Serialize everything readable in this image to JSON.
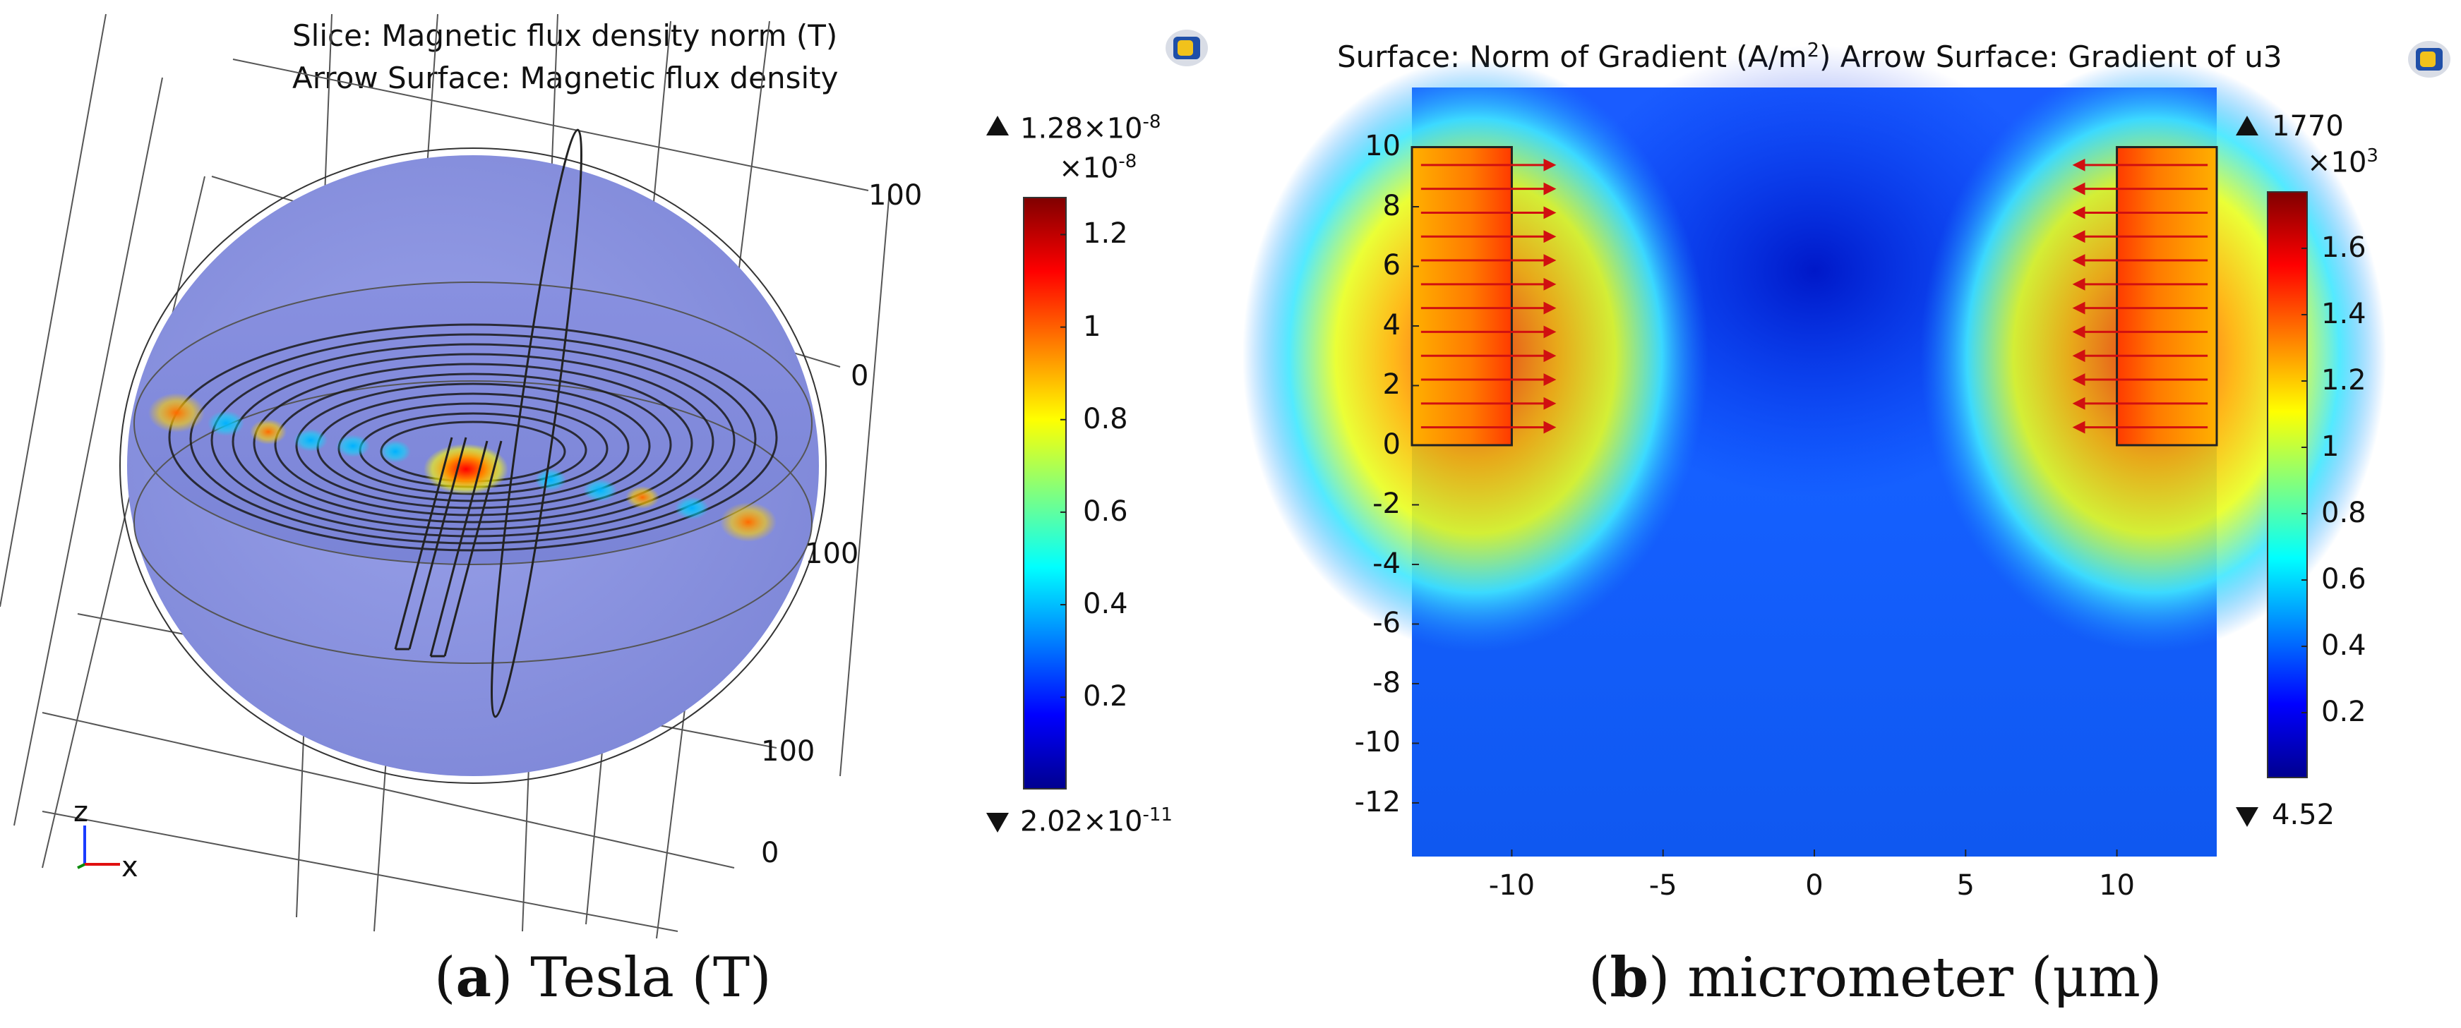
{
  "chart_data": [
    {
      "type": "heatmap",
      "panel_label": "a",
      "caption": "Tesla (T)",
      "title_lines": [
        "Slice: Magnetic flux density norm (T)",
        "Arrow Surface: Magnetic flux density"
      ],
      "axis_tick_labels": [
        "100",
        "0",
        "100",
        "100",
        "0"
      ],
      "axes_triad": {
        "z": "z",
        "x": "x"
      },
      "colorbar": {
        "max_label": "1.28×10",
        "max_exp": "-8",
        "multiplier": "×10",
        "multiplier_exp": "-8",
        "min_label": "2.02×10",
        "min_exp": "-11",
        "ticks": [
          "1.2",
          "1",
          "0.8",
          "0.6",
          "0.4",
          "0.2"
        ],
        "tick_values": [
          1.2,
          1.0,
          0.8,
          0.6,
          0.4,
          0.2
        ],
        "range": [
          0.00202,
          1.28
        ]
      }
    },
    {
      "type": "heatmap",
      "panel_label": "b",
      "caption": "micrometer (μm)",
      "title_left": "Surface: Norm of Gradient (A/m",
      "title_sup": "2",
      "title_right": ")  Arrow Surface: Gradient of u3",
      "x_ticks": [
        "-10",
        "-5",
        "0",
        "5",
        "10"
      ],
      "x_tick_values": [
        -10,
        -5,
        0,
        5,
        10
      ],
      "y_ticks": [
        "10",
        "8",
        "6",
        "4",
        "2",
        "0",
        "-2",
        "-4",
        "-6",
        "-8",
        "-10",
        "-12"
      ],
      "y_tick_values": [
        10,
        8,
        6,
        4,
        2,
        0,
        -2,
        -4,
        -6,
        -8,
        -10,
        -12
      ],
      "xlim": [
        -13.3,
        13.3
      ],
      "ylim": [
        -13.8,
        12
      ],
      "electrodes": [
        {
          "x": [
            -13.3,
            -10
          ],
          "y": [
            0,
            10
          ]
        },
        {
          "x": [
            10,
            13.3
          ],
          "y": [
            0,
            10
          ]
        }
      ],
      "colorbar": {
        "max_label": "1770",
        "multiplier": "×10",
        "multiplier_exp": "3",
        "min_label": "4.52",
        "ticks": [
          "1.6",
          "1.4",
          "1.2",
          "1",
          "0.8",
          "0.6",
          "0.4",
          "0.2"
        ],
        "tick_values": [
          1.6,
          1.4,
          1.2,
          1.0,
          0.8,
          0.6,
          0.4,
          0.2
        ],
        "range": [
          0.00452,
          1.77
        ]
      }
    }
  ],
  "colors": {
    "jet_dark_blue": "#00008f",
    "jet_blue": "#0000ff",
    "jet_cyan": "#00ffff",
    "jet_yellow": "#ffff00",
    "jet_red": "#ff0000",
    "jet_dark_red": "#800000",
    "sphere": "#8a92e0",
    "arrow": "#e01010"
  }
}
